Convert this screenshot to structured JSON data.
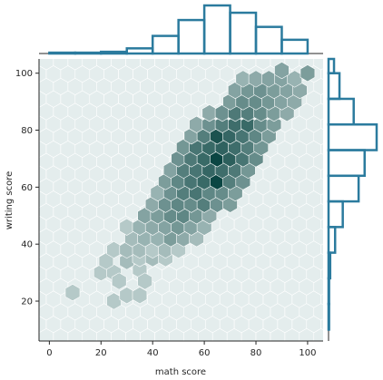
{
  "chart_data": {
    "type": "hexbin-jointplot",
    "xlabel": "math score",
    "ylabel": "writing score",
    "xlim": [
      -4,
      106
    ],
    "ylim": [
      6,
      105
    ],
    "xticks": [
      0,
      20,
      40,
      60,
      80,
      100
    ],
    "yticks": [
      20,
      40,
      60,
      80,
      100
    ],
    "hexbin": {
      "cmap_base": "#e8f0f0",
      "cmap_dark": "#0b4643",
      "max_count": 28,
      "cells": [
        {
          "x": 25,
          "y": 20,
          "c": 1
        },
        {
          "x": 30,
          "y": 22,
          "c": 1
        },
        {
          "x": 35,
          "y": 22,
          "c": 1
        },
        {
          "x": 9,
          "y": 23,
          "c": 1
        },
        {
          "x": 20,
          "y": 30,
          "c": 1
        },
        {
          "x": 25,
          "y": 30,
          "c": 1
        },
        {
          "x": 27,
          "y": 27,
          "c": 1
        },
        {
          "x": 35,
          "y": 31,
          "c": 1
        },
        {
          "x": 37,
          "y": 27,
          "c": 1
        },
        {
          "x": 22,
          "y": 34,
          "c": 1
        },
        {
          "x": 30,
          "y": 34,
          "c": 2
        },
        {
          "x": 35,
          "y": 35,
          "c": 1
        },
        {
          "x": 40,
          "y": 35,
          "c": 2
        },
        {
          "x": 45,
          "y": 35,
          "c": 1
        },
        {
          "x": 25,
          "y": 38,
          "c": 1
        },
        {
          "x": 30,
          "y": 38,
          "c": 2
        },
        {
          "x": 35,
          "y": 38,
          "c": 2
        },
        {
          "x": 40,
          "y": 38,
          "c": 1
        },
        {
          "x": 45,
          "y": 38,
          "c": 2
        },
        {
          "x": 50,
          "y": 38,
          "c": 1
        },
        {
          "x": 32,
          "y": 42,
          "c": 2
        },
        {
          "x": 37,
          "y": 42,
          "c": 3
        },
        {
          "x": 42,
          "y": 42,
          "c": 3
        },
        {
          "x": 47,
          "y": 42,
          "c": 6
        },
        {
          "x": 52,
          "y": 42,
          "c": 4
        },
        {
          "x": 57,
          "y": 42,
          "c": 2
        },
        {
          "x": 30,
          "y": 46,
          "c": 1
        },
        {
          "x": 35,
          "y": 46,
          "c": 3
        },
        {
          "x": 40,
          "y": 46,
          "c": 4
        },
        {
          "x": 45,
          "y": 46,
          "c": 5
        },
        {
          "x": 50,
          "y": 46,
          "c": 7
        },
        {
          "x": 55,
          "y": 46,
          "c": 5
        },
        {
          "x": 60,
          "y": 46,
          "c": 3
        },
        {
          "x": 37,
          "y": 50,
          "c": 5
        },
        {
          "x": 42,
          "y": 50,
          "c": 6
        },
        {
          "x": 47,
          "y": 50,
          "c": 9
        },
        {
          "x": 52,
          "y": 50,
          "c": 10
        },
        {
          "x": 57,
          "y": 50,
          "c": 7
        },
        {
          "x": 62,
          "y": 50,
          "c": 4
        },
        {
          "x": 40,
          "y": 54,
          "c": 4
        },
        {
          "x": 45,
          "y": 54,
          "c": 8
        },
        {
          "x": 50,
          "y": 54,
          "c": 10
        },
        {
          "x": 55,
          "y": 54,
          "c": 9
        },
        {
          "x": 60,
          "y": 54,
          "c": 12
        },
        {
          "x": 65,
          "y": 54,
          "c": 8
        },
        {
          "x": 70,
          "y": 54,
          "c": 6
        },
        {
          "x": 42,
          "y": 58,
          "c": 3
        },
        {
          "x": 47,
          "y": 58,
          "c": 8
        },
        {
          "x": 52,
          "y": 58,
          "c": 12
        },
        {
          "x": 57,
          "y": 58,
          "c": 14
        },
        {
          "x": 62,
          "y": 58,
          "c": 10
        },
        {
          "x": 67,
          "y": 58,
          "c": 9
        },
        {
          "x": 72,
          "y": 58,
          "c": 6
        },
        {
          "x": 45,
          "y": 62,
          "c": 6
        },
        {
          "x": 50,
          "y": 62,
          "c": 10
        },
        {
          "x": 55,
          "y": 62,
          "c": 14
        },
        {
          "x": 60,
          "y": 62,
          "c": 17
        },
        {
          "x": 65,
          "y": 62,
          "c": 28
        },
        {
          "x": 70,
          "y": 62,
          "c": 12
        },
        {
          "x": 75,
          "y": 62,
          "c": 8
        },
        {
          "x": 47,
          "y": 66,
          "c": 5
        },
        {
          "x": 52,
          "y": 66,
          "c": 12
        },
        {
          "x": 57,
          "y": 66,
          "c": 14
        },
        {
          "x": 62,
          "y": 66,
          "c": 18
        },
        {
          "x": 67,
          "y": 66,
          "c": 16
        },
        {
          "x": 72,
          "y": 66,
          "c": 13
        },
        {
          "x": 77,
          "y": 66,
          "c": 7
        },
        {
          "x": 50,
          "y": 70,
          "c": 8
        },
        {
          "x": 55,
          "y": 70,
          "c": 13
        },
        {
          "x": 60,
          "y": 70,
          "c": 17
        },
        {
          "x": 65,
          "y": 70,
          "c": 28
        },
        {
          "x": 70,
          "y": 70,
          "c": 20
        },
        {
          "x": 75,
          "y": 70,
          "c": 14
        },
        {
          "x": 80,
          "y": 70,
          "c": 9
        },
        {
          "x": 52,
          "y": 74,
          "c": 7
        },
        {
          "x": 57,
          "y": 74,
          "c": 14
        },
        {
          "x": 62,
          "y": 74,
          "c": 17
        },
        {
          "x": 67,
          "y": 74,
          "c": 19
        },
        {
          "x": 72,
          "y": 74,
          "c": 16
        },
        {
          "x": 77,
          "y": 74,
          "c": 12
        },
        {
          "x": 82,
          "y": 74,
          "c": 7
        },
        {
          "x": 55,
          "y": 78,
          "c": 5
        },
        {
          "x": 60,
          "y": 78,
          "c": 12
        },
        {
          "x": 65,
          "y": 78,
          "c": 24
        },
        {
          "x": 70,
          "y": 78,
          "c": 18
        },
        {
          "x": 75,
          "y": 78,
          "c": 14
        },
        {
          "x": 80,
          "y": 78,
          "c": 10
        },
        {
          "x": 85,
          "y": 78,
          "c": 6
        },
        {
          "x": 57,
          "y": 82,
          "c": 4
        },
        {
          "x": 62,
          "y": 82,
          "c": 8
        },
        {
          "x": 67,
          "y": 82,
          "c": 12
        },
        {
          "x": 72,
          "y": 82,
          "c": 16
        },
        {
          "x": 77,
          "y": 82,
          "c": 17
        },
        {
          "x": 82,
          "y": 82,
          "c": 9
        },
        {
          "x": 87,
          "y": 82,
          "c": 6
        },
        {
          "x": 62,
          "y": 86,
          "c": 4
        },
        {
          "x": 67,
          "y": 86,
          "c": 8
        },
        {
          "x": 72,
          "y": 86,
          "c": 13
        },
        {
          "x": 77,
          "y": 86,
          "c": 12
        },
        {
          "x": 82,
          "y": 86,
          "c": 9
        },
        {
          "x": 87,
          "y": 86,
          "c": 6
        },
        {
          "x": 92,
          "y": 86,
          "c": 4
        },
        {
          "x": 70,
          "y": 90,
          "c": 6
        },
        {
          "x": 75,
          "y": 90,
          "c": 9
        },
        {
          "x": 80,
          "y": 90,
          "c": 9
        },
        {
          "x": 85,
          "y": 90,
          "c": 7
        },
        {
          "x": 90,
          "y": 90,
          "c": 5
        },
        {
          "x": 95,
          "y": 90,
          "c": 4
        },
        {
          "x": 72,
          "y": 94,
          "c": 5
        },
        {
          "x": 77,
          "y": 94,
          "c": 7
        },
        {
          "x": 82,
          "y": 94,
          "c": 8
        },
        {
          "x": 87,
          "y": 94,
          "c": 6
        },
        {
          "x": 92,
          "y": 94,
          "c": 5
        },
        {
          "x": 97,
          "y": 94,
          "c": 4
        },
        {
          "x": 75,
          "y": 98,
          "c": 3
        },
        {
          "x": 80,
          "y": 98,
          "c": 4
        },
        {
          "x": 85,
          "y": 98,
          "c": 5
        },
        {
          "x": 90,
          "y": 98,
          "c": 5
        },
        {
          "x": 95,
          "y": 98,
          "c": 3
        },
        {
          "x": 100,
          "y": 100,
          "c": 6
        },
        {
          "x": 90,
          "y": 101,
          "c": 5
        }
      ]
    },
    "marginal_x": {
      "color": "#2b7b9e",
      "bins": [
        {
          "x0": 0,
          "x1": 10,
          "value": 2
        },
        {
          "x0": 10,
          "x1": 20,
          "value": 2
        },
        {
          "x0": 20,
          "x1": 30,
          "value": 4
        },
        {
          "x0": 30,
          "x1": 40,
          "value": 12
        },
        {
          "x0": 40,
          "x1": 50,
          "value": 41
        },
        {
          "x0": 50,
          "x1": 60,
          "value": 78
        },
        {
          "x0": 60,
          "x1": 70,
          "value": 112
        },
        {
          "x0": 70,
          "x1": 80,
          "value": 95
        },
        {
          "x0": 80,
          "x1": 90,
          "value": 62
        },
        {
          "x0": 90,
          "x1": 100,
          "value": 32
        }
      ]
    },
    "marginal_y": {
      "color": "#2b7b9e",
      "bins": [
        {
          "y0": 10,
          "y1": 19,
          "value": 1
        },
        {
          "y0": 19,
          "y1": 28,
          "value": 1
        },
        {
          "y0": 28,
          "y1": 37,
          "value": 3
        },
        {
          "y0": 37,
          "y1": 46,
          "value": 12
        },
        {
          "y0": 46,
          "y1": 55,
          "value": 26
        },
        {
          "y0": 55,
          "y1": 64,
          "value": 55
        },
        {
          "y0": 64,
          "y1": 73,
          "value": 66
        },
        {
          "y0": 73,
          "y1": 82,
          "value": 88
        },
        {
          "y0": 82,
          "y1": 91,
          "value": 46
        },
        {
          "y0": 91,
          "y1": 100,
          "value": 20
        },
        {
          "y0": 100,
          "y1": 109,
          "value": 10
        }
      ]
    }
  }
}
